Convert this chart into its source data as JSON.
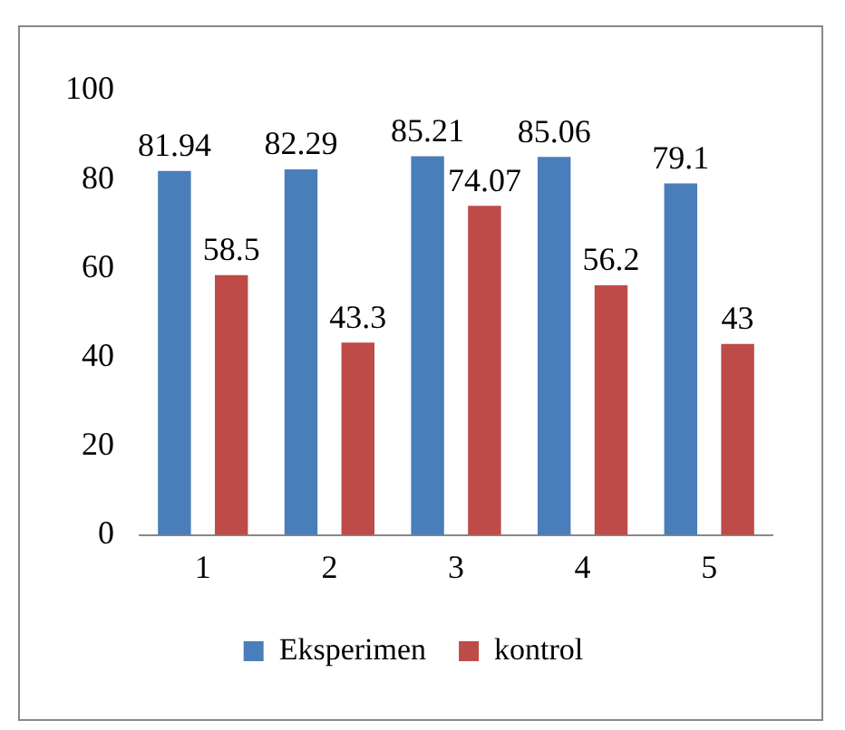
{
  "chart_data": {
    "type": "bar",
    "categories": [
      "1",
      "2",
      "3",
      "4",
      "5"
    ],
    "series": [
      {
        "name": "Eksperimen",
        "color": "#4a7ebb",
        "values": [
          81.94,
          82.29,
          85.21,
          85.06,
          79.1
        ]
      },
      {
        "name": "kontrol",
        "color": "#be4b48",
        "values": [
          58.5,
          43.3,
          74.07,
          56.2,
          43
        ]
      }
    ],
    "ylim": [
      0,
      100
    ],
    "yticks": [
      0,
      20,
      40,
      60,
      80,
      100
    ],
    "grid": false,
    "legend": "bottom",
    "data_labels": true
  }
}
